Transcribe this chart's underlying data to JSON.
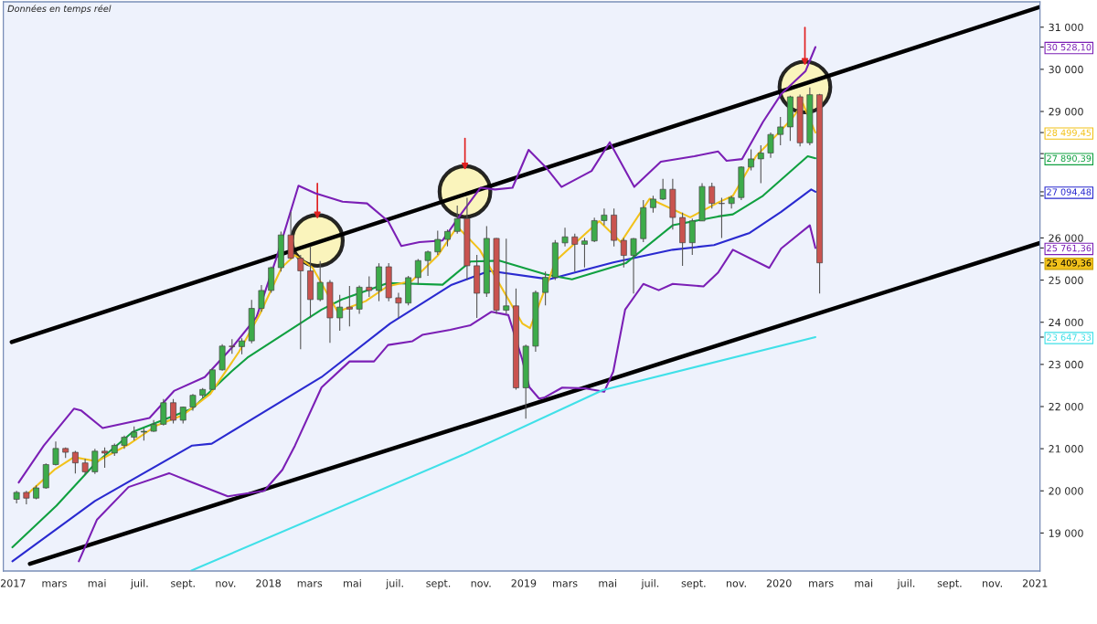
{
  "chart_data": {
    "type": "candlestick",
    "x": [
      "2017-01-06",
      "2017-01-20",
      "2017-02-03",
      "2017-02-17",
      "2017-03-03",
      "2017-03-17",
      "2017-03-31",
      "2017-04-14",
      "2017-04-28",
      "2017-05-12",
      "2017-05-26",
      "2017-06-09",
      "2017-06-23",
      "2017-07-07",
      "2017-07-21",
      "2017-08-04",
      "2017-08-18",
      "2017-09-01",
      "2017-09-15",
      "2017-09-29",
      "2017-10-13",
      "2017-10-27",
      "2017-11-10",
      "2017-11-24",
      "2017-12-08",
      "2017-12-22",
      "2018-01-05",
      "2018-01-19",
      "2018-02-02",
      "2018-02-16",
      "2018-03-02",
      "2018-03-16",
      "2018-03-30",
      "2018-04-13",
      "2018-04-27",
      "2018-05-11",
      "2018-05-25",
      "2018-06-08",
      "2018-06-22",
      "2018-07-06",
      "2018-07-20",
      "2018-08-03",
      "2018-08-17",
      "2018-08-31",
      "2018-09-14",
      "2018-09-28",
      "2018-10-12",
      "2018-10-26",
      "2018-11-09",
      "2018-11-23",
      "2018-12-07",
      "2018-12-21",
      "2019-01-04",
      "2019-01-18",
      "2019-02-01",
      "2019-02-15",
      "2019-03-01",
      "2019-03-15",
      "2019-03-29",
      "2019-04-12",
      "2019-04-26",
      "2019-05-10",
      "2019-05-24",
      "2019-06-07",
      "2019-06-21",
      "2019-07-05",
      "2019-07-19",
      "2019-08-02",
      "2019-08-16",
      "2019-08-30",
      "2019-09-13",
      "2019-09-27",
      "2019-10-11",
      "2019-10-25",
      "2019-11-08",
      "2019-11-22",
      "2019-12-06",
      "2019-12-20",
      "2020-01-03",
      "2020-01-17",
      "2020-01-31",
      "2020-02-14",
      "2020-02-28"
    ],
    "ohlc": [
      [
        19800,
        20000,
        19700,
        19964
      ],
      [
        19964,
        20000,
        19680,
        19827
      ],
      [
        19827,
        20130,
        19800,
        20071
      ],
      [
        20071,
        20650,
        20050,
        20624
      ],
      [
        20624,
        21170,
        20600,
        21006
      ],
      [
        21006,
        21030,
        20780,
        20915
      ],
      [
        20915,
        20950,
        20410,
        20663
      ],
      [
        20663,
        20760,
        20380,
        20453
      ],
      [
        20453,
        21000,
        20400,
        20941
      ],
      [
        20941,
        21030,
        20550,
        20897
      ],
      [
        20897,
        21120,
        20830,
        21080
      ],
      [
        21080,
        21310,
        21000,
        21272
      ],
      [
        21272,
        21530,
        21200,
        21395
      ],
      [
        21395,
        21480,
        21190,
        21414
      ],
      [
        21414,
        21680,
        21400,
        21580
      ],
      [
        21580,
        22180,
        21550,
        22092
      ],
      [
        22092,
        22180,
        21600,
        21675
      ],
      [
        21675,
        22000,
        21600,
        21988
      ],
      [
        21988,
        22300,
        21900,
        22268
      ],
      [
        22268,
        22440,
        22200,
        22405
      ],
      [
        22405,
        22900,
        22400,
        22871
      ],
      [
        22871,
        23480,
        22850,
        23434
      ],
      [
        23434,
        23600,
        23250,
        23422
      ],
      [
        23422,
        23620,
        23240,
        23558
      ],
      [
        23558,
        24530,
        23500,
        24329
      ],
      [
        24329,
        24880,
        24250,
        24754
      ],
      [
        24754,
        25320,
        24700,
        25295
      ],
      [
        25295,
        26150,
        25200,
        26071
      ],
      [
        26071,
        26616,
        25500,
        25520
      ],
      [
        25520,
        25600,
        23360,
        25219
      ],
      [
        25219,
        25800,
        24100,
        24538
      ],
      [
        24538,
        25450,
        24500,
        24946
      ],
      [
        24946,
        25000,
        23509,
        24103
      ],
      [
        24103,
        24650,
        23800,
        24360
      ],
      [
        24360,
        24860,
        23900,
        24311
      ],
      [
        24311,
        24870,
        24200,
        24831
      ],
      [
        24831,
        25090,
        24600,
        24753
      ],
      [
        24753,
        25400,
        24500,
        25316
      ],
      [
        25316,
        25400,
        24500,
        24580
      ],
      [
        24580,
        24700,
        24100,
        24456
      ],
      [
        24456,
        25100,
        24400,
        25058
      ],
      [
        25058,
        25500,
        24900,
        25463
      ],
      [
        25463,
        25700,
        25100,
        25669
      ],
      [
        25669,
        26170,
        25600,
        25965
      ],
      [
        25965,
        26200,
        25800,
        26154
      ],
      [
        26154,
        26770,
        26100,
        26458
      ],
      [
        26458,
        26951,
        25000,
        25340
      ],
      [
        25340,
        25600,
        24100,
        24688
      ],
      [
        24688,
        26280,
        24600,
        25989
      ],
      [
        25989,
        26000,
        24200,
        24286
      ],
      [
        24286,
        25980,
        24200,
        24389
      ],
      [
        24389,
        24800,
        22400,
        22445
      ],
      [
        22445,
        23470,
        21713,
        23433
      ],
      [
        23433,
        24750,
        23300,
        24706
      ],
      [
        24706,
        25200,
        24400,
        25064
      ],
      [
        25064,
        25950,
        25000,
        25883
      ],
      [
        25883,
        26240,
        25800,
        26026
      ],
      [
        26026,
        26100,
        25200,
        25849
      ],
      [
        25849,
        26000,
        25300,
        25929
      ],
      [
        25929,
        26480,
        25900,
        26412
      ],
      [
        26412,
        26700,
        26300,
        26543
      ],
      [
        26543,
        26700,
        25800,
        25942
      ],
      [
        25942,
        26000,
        25300,
        25585
      ],
      [
        25585,
        26000,
        24680,
        25983
      ],
      [
        25983,
        26900,
        25900,
        26719
      ],
      [
        26719,
        27000,
        26600,
        26922
      ],
      [
        26922,
        27400,
        26900,
        27154
      ],
      [
        27154,
        27400,
        26200,
        26485
      ],
      [
        26485,
        26600,
        25340,
        25886
      ],
      [
        25886,
        26460,
        25600,
        26403
      ],
      [
        26403,
        27300,
        26400,
        27220
      ],
      [
        27220,
        27310,
        26700,
        26820
      ],
      [
        26820,
        26950,
        26000,
        26816
      ],
      [
        26816,
        27000,
        26700,
        26958
      ],
      [
        26958,
        27700,
        26900,
        27681
      ],
      [
        27681,
        28100,
        27600,
        27876
      ],
      [
        27876,
        28200,
        27300,
        28015
      ],
      [
        28015,
        28500,
        27900,
        28455
      ],
      [
        28455,
        28870,
        28200,
        28634
      ],
      [
        28634,
        29375,
        28300,
        29348
      ],
      [
        29348,
        29400,
        28170,
        28256
      ],
      [
        28256,
        29568,
        28200,
        29398
      ],
      [
        29398,
        29420,
        24681,
        25409.36
      ]
    ],
    "colors": [
      "#3dab4a",
      "#c9534f",
      "#3dab4a",
      "#3dab4a",
      "#3dab4a",
      "#c9534f",
      "#c9534f",
      "#c9534f",
      "#3dab4a",
      "#c9534f",
      "#3dab4a",
      "#3dab4a",
      "#3dab4a",
      "#3dab4a",
      "#3dab4a",
      "#3dab4a",
      "#c9534f",
      "#3dab4a",
      "#3dab4a",
      "#3dab4a",
      "#3dab4a",
      "#3dab4a",
      "#c9534f",
      "#3dab4a",
      "#3dab4a",
      "#3dab4a",
      "#3dab4a",
      "#3dab4a",
      "#c9534f",
      "#c9534f",
      "#c9534f",
      "#3dab4a",
      "#c9534f",
      "#3dab4a",
      "#c9534f",
      "#3dab4a",
      "#c9534f",
      "#3dab4a",
      "#c9534f",
      "#c9534f",
      "#3dab4a",
      "#3dab4a",
      "#3dab4a",
      "#3dab4a",
      "#3dab4a",
      "#3dab4a",
      "#c9534f",
      "#c9534f",
      "#3dab4a",
      "#c9534f",
      "#3dab4a",
      "#c9534f",
      "#3dab4a",
      "#3dab4a",
      "#3dab4a",
      "#3dab4a",
      "#3dab4a",
      "#c9534f",
      "#3dab4a",
      "#3dab4a",
      "#3dab4a",
      "#c9534f",
      "#c9534f",
      "#3dab4a",
      "#3dab4a",
      "#3dab4a",
      "#3dab4a",
      "#c9534f",
      "#c9534f",
      "#3dab4a",
      "#3dab4a",
      "#c9534f",
      "#c9534f",
      "#3dab4a",
      "#3dab4a",
      "#3dab4a",
      "#3dab4a",
      "#3dab4a",
      "#3dab4a",
      "#3dab4a",
      "#c9534f",
      "#3dab4a",
      "#c9534f"
    ],
    "series": [
      {
        "type": "line",
        "color": "#000000",
        "x": [
          "2016-12-30",
          "2021-01-08"
        ],
        "values": [
          23530,
          31480
        ]
      },
      {
        "type": "line",
        "color": "#000000",
        "x": [
          "2017-01-25",
          "2021-01-08"
        ],
        "values": [
          18270,
          25880
        ]
      },
      {
        "type": "line",
        "color": "#7b1fb5",
        "x": [
          "2017-01-09",
          "2017-02-14",
          "2017-03-29",
          "2017-04-08",
          "2017-05-09",
          "2017-07-15",
          "2017-08-19",
          "2017-10-02",
          "2017-11-11",
          "2017-12-15",
          "2018-01-13",
          "2018-02-13",
          "2018-03-09",
          "2018-04-17",
          "2018-05-22",
          "2018-06-21",
          "2018-07-10",
          "2018-08-05",
          "2018-09-07",
          "2018-10-03",
          "2018-10-31",
          "2018-11-21",
          "2018-12-16",
          "2019-01-08",
          "2019-02-03",
          "2019-02-24",
          "2019-04-08",
          "2019-05-04",
          "2019-06-08",
          "2019-07-16",
          "2019-09-02",
          "2019-10-06",
          "2019-10-18",
          "2019-11-09",
          "2019-12-09",
          "2020-01-04",
          "2020-02-08",
          "2020-02-22"
        ],
        "values": [
          20200,
          21075,
          21950,
          21910,
          21490,
          21730,
          22370,
          22700,
          23420,
          24120,
          25550,
          27240,
          27060,
          26860,
          26820,
          26400,
          25810,
          25900,
          25940,
          26560,
          27190,
          27150,
          27190,
          28090,
          27650,
          27210,
          27590,
          28270,
          27210,
          27810,
          27940,
          28050,
          27830,
          27870,
          28750,
          29410,
          29960,
          30528.1
        ]
      },
      {
        "type": "line",
        "color": "#7b1fb5",
        "x": [
          "2017-04-05",
          "2017-05-01",
          "2017-06-15",
          "2017-08-12",
          "2017-09-14",
          "2017-11-04",
          "2017-12-26",
          "2018-01-21",
          "2018-02-08",
          "2018-03-18",
          "2018-04-27",
          "2018-06-01",
          "2018-06-21",
          "2018-07-26",
          "2018-08-09",
          "2018-09-18",
          "2018-10-17",
          "2018-11-16",
          "2018-12-10",
          "2018-12-30",
          "2019-01-09",
          "2019-01-23",
          "2019-01-30",
          "2019-02-25",
          "2019-03-31",
          "2019-04-26",
          "2019-05-09",
          "2019-05-26",
          "2019-06-21",
          "2019-07-13",
          "2019-08-02",
          "2019-09-15",
          "2019-10-06",
          "2019-10-27",
          "2019-12-18",
          "2020-01-04",
          "2020-02-14",
          "2020-02-22"
        ],
        "values": [
          18330,
          19320,
          20090,
          20420,
          20200,
          19870,
          20000,
          20500,
          21075,
          22455,
          23070,
          23070,
          23460,
          23550,
          23700,
          23820,
          23930,
          24250,
          24170,
          23110,
          22460,
          22190,
          22210,
          22450,
          22430,
          22350,
          22830,
          24300,
          24910,
          24760,
          24910,
          24850,
          25180,
          25720,
          25290,
          25750,
          26300,
          25761.36
        ]
      },
      {
        "type": "line",
        "color": "#40e0e8",
        "x": [
          "2017-09-13",
          "2018-10-06",
          "2019-04-24",
          "2020-02-22"
        ],
        "values": [
          18110,
          20855,
          22390,
          23647.33
        ]
      },
      {
        "type": "line",
        "color": "#2a2ad0",
        "x": [
          "2016-12-31",
          "2017-04-28",
          "2017-09-14",
          "2017-10-12",
          "2018-03-18",
          "2018-06-24",
          "2018-09-20",
          "2018-11-13",
          "2019-02-06",
          "2019-05-09",
          "2019-08-02",
          "2019-09-30",
          "2019-11-20",
          "2020-01-04",
          "2020-02-16",
          "2020-02-22"
        ],
        "values": [
          18330,
          19760,
          21075,
          21120,
          22700,
          23970,
          24890,
          25220,
          25020,
          25420,
          25720,
          25830,
          26120,
          26620,
          27150,
          27094.48
        ]
      },
      {
        "type": "line",
        "color": "#10a040",
        "x": [
          "2016-12-31",
          "2017-03-04",
          "2017-04-28",
          "2017-06-21",
          "2017-09-14",
          "2017-11-09",
          "2017-12-02",
          "2018-03-18",
          "2018-04-16",
          "2018-06-21",
          "2018-09-07",
          "2018-10-17",
          "2018-11-27",
          "2019-02-02",
          "2019-03-11",
          "2019-05-27",
          "2019-08-02",
          "2019-10-06",
          "2019-10-27",
          "2019-12-09",
          "2020-02-11",
          "2020-02-22"
        ],
        "values": [
          18660,
          19650,
          20640,
          21400,
          21950,
          22830,
          23160,
          24300,
          24540,
          24930,
          24890,
          25440,
          25460,
          25130,
          25020,
          25400,
          26300,
          26510,
          26560,
          27000,
          27940,
          27890.39
        ]
      },
      {
        "type": "line",
        "color": "#f2c21b",
        "x": [
          "2017-01-20",
          "2017-03-01",
          "2017-03-29",
          "2017-05-01",
          "2017-06-15",
          "2017-07-25",
          "2017-09-01",
          "2017-10-10",
          "2017-11-20",
          "2017-12-20",
          "2018-01-20",
          "2018-02-08",
          "2018-03-05",
          "2018-04-10",
          "2018-05-20",
          "2018-06-20",
          "2018-07-25",
          "2018-09-01",
          "2018-09-28",
          "2018-10-30",
          "2018-12-30",
          "2019-01-10",
          "2019-02-16",
          "2019-04-19",
          "2019-05-20",
          "2019-06-30",
          "2019-08-27",
          "2019-10-06",
          "2019-10-27",
          "2019-11-29",
          "2019-12-25",
          "2020-01-19",
          "2020-02-04",
          "2020-02-22"
        ],
        "values": [
          19900,
          20500,
          20800,
          20700,
          21100,
          21550,
          21800,
          22300,
          23300,
          24200,
          25300,
          25590,
          25300,
          24250,
          24500,
          24850,
          24980,
          25600,
          26270,
          25720,
          23970,
          23860,
          25460,
          26400,
          25900,
          26930,
          26490,
          26840,
          27000,
          27940,
          28380,
          28820,
          29190,
          28499.45
        ]
      }
    ],
    "xlim": [
      "2016-12-18",
      "2021-01-08"
    ],
    "xticks": [
      {
        "value": "2017-01-01",
        "label": "2017"
      },
      {
        "value": "2017-03-01",
        "label": "mars"
      },
      {
        "value": "2017-05-01",
        "label": "mai"
      },
      {
        "value": "2017-07-01",
        "label": "juil."
      },
      {
        "value": "2017-09-01",
        "label": "sept."
      },
      {
        "value": "2017-11-01",
        "label": "nov."
      },
      {
        "value": "2018-01-01",
        "label": "2018"
      },
      {
        "value": "2018-03-01",
        "label": "mars"
      },
      {
        "value": "2018-05-01",
        "label": "mai"
      },
      {
        "value": "2018-07-01",
        "label": "juil."
      },
      {
        "value": "2018-09-01",
        "label": "sept."
      },
      {
        "value": "2018-11-01",
        "label": "nov."
      },
      {
        "value": "2019-01-01",
        "label": "2019"
      },
      {
        "value": "2019-03-01",
        "label": "mars"
      },
      {
        "value": "2019-05-01",
        "label": "mai"
      },
      {
        "value": "2019-07-01",
        "label": "juil."
      },
      {
        "value": "2019-09-01",
        "label": "sept."
      },
      {
        "value": "2019-11-01",
        "label": "nov."
      },
      {
        "value": "2020-01-01",
        "label": "2020"
      },
      {
        "value": "2020-03-01",
        "label": "mars"
      },
      {
        "value": "2020-05-01",
        "label": "mai"
      },
      {
        "value": "2020-07-01",
        "label": "juil."
      },
      {
        "value": "2020-09-01",
        "label": "sept."
      },
      {
        "value": "2020-11-01",
        "label": "nov."
      },
      {
        "value": "2021-01-01",
        "label": "2021"
      }
    ],
    "ylim": [
      18100,
      31600
    ],
    "yticks": [
      {
        "value": 19000,
        "label": "19 000"
      },
      {
        "value": 20000,
        "label": "20 000"
      },
      {
        "value": 21000,
        "label": "21 000"
      },
      {
        "value": 22000,
        "label": "22 000"
      },
      {
        "value": 23000,
        "label": "23 000"
      },
      {
        "value": 24000,
        "label": "24 000"
      },
      {
        "value": 25000,
        "label": "25 000"
      },
      {
        "value": 26000,
        "label": "26 000"
      },
      {
        "value": 27000,
        "label": null
      },
      {
        "value": 28000,
        "label": null
      },
      {
        "value": 29000,
        "label": "29 000"
      },
      {
        "value": 30000,
        "label": "30 000"
      },
      {
        "value": 31000,
        "label": "31 000"
      }
    ],
    "y2lim": [
      18100,
      31600
    ],
    "y2ticks": [
      {
        "value": 30528.1,
        "label": "30 528,10"
      },
      {
        "value": 28499.45,
        "label": "28 499,45"
      },
      {
        "value": 27890.39,
        "label": "27 890,39"
      },
      {
        "value": 27094.48,
        "label": "27 094,48"
      },
      {
        "value": 25761.36,
        "label": "25 761,36"
      },
      {
        "value": 25409.36,
        "label": "25 409,36"
      },
      {
        "value": 23647.33,
        "label": "23 647,33"
      }
    ],
    "annotations": [
      "Données en temps réel"
    ],
    "grid": false,
    "legend": false
  }
}
